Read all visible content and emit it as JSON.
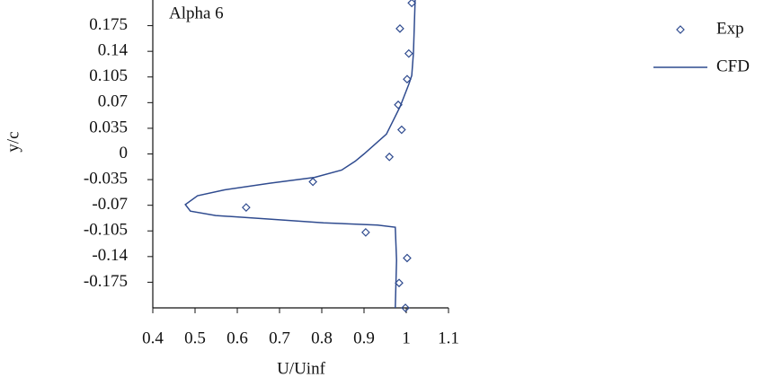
{
  "chart_data": {
    "type": "scatter-line",
    "annotation": "Alpha 6",
    "x_label": "U/Uinf",
    "y_label": "y/c",
    "xlim": [
      0.4,
      1.1
    ],
    "xticks": [
      0.4,
      0.5,
      0.6,
      0.7,
      0.8,
      0.9,
      1,
      1.1
    ],
    "ylim": [
      -0.21,
      0.21
    ],
    "yticks": [
      0.175,
      0.14,
      0.105,
      0.07,
      0.035,
      0,
      -0.035,
      -0.07,
      -0.105,
      -0.14,
      -0.175
    ],
    "series": [
      {
        "name": "Exp",
        "kind": "markers",
        "color": "#2f4b8f",
        "x": [
          1.013,
          0.985,
          1.006,
          1.002,
          0.981,
          0.989,
          0.96,
          0.779,
          0.621,
          0.904,
          1.002,
          0.983,
          0.998
        ],
        "values": [
          0.206,
          0.171,
          0.137,
          0.102,
          0.067,
          0.033,
          -0.004,
          -0.038,
          -0.073,
          -0.107,
          -0.142,
          -0.176,
          -0.21
        ]
      },
      {
        "name": "CFD",
        "kind": "line",
        "color": "#2f4b8f",
        "x": [
          1.021,
          1.017,
          1.013,
          1.006,
          0.985,
          0.953,
          0.9,
          0.879,
          0.847,
          0.783,
          0.677,
          0.57,
          0.506,
          0.477,
          0.489,
          0.549,
          0.677,
          0.804,
          0.932,
          0.974,
          0.977,
          0.974
        ],
        "values": [
          0.21,
          0.138,
          0.107,
          0.095,
          0.064,
          0.027,
          0,
          -0.01,
          -0.022,
          -0.032,
          -0.04,
          -0.049,
          -0.057,
          -0.069,
          -0.078,
          -0.084,
          -0.089,
          -0.094,
          -0.097,
          -0.1,
          -0.145,
          -0.21
        ]
      }
    ]
  }
}
